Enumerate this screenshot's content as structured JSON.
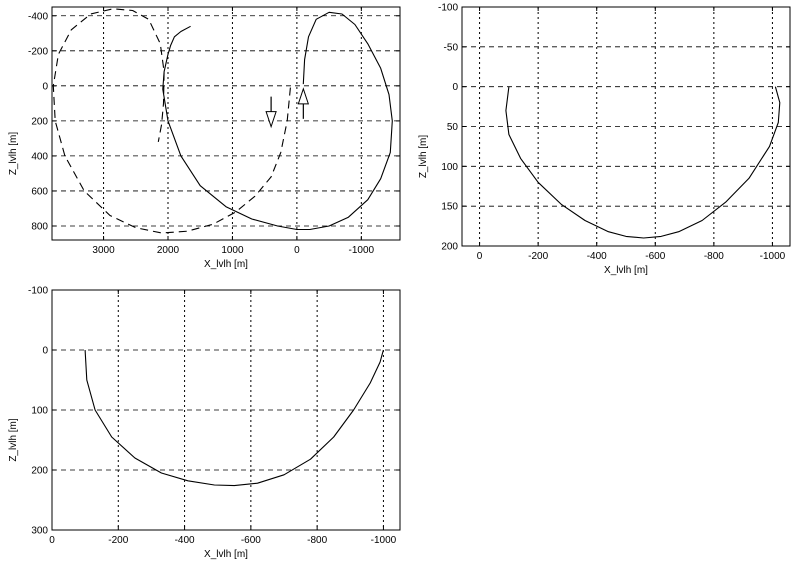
{
  "chart_data": [
    {
      "type": "line",
      "xlabel": "X_lvlh [m]",
      "ylabel": "Z_lvlh [m]",
      "xlim": [
        3800,
        -1600
      ],
      "ylim": [
        -450,
        880
      ],
      "xticks": [
        3000,
        2000,
        1000,
        0,
        -1000
      ],
      "xtick_labels": [
        "3000",
        "2000",
        "1000",
        "0",
        "-1000"
      ],
      "yticks": [
        -400,
        -200,
        0,
        200,
        400,
        600,
        800
      ],
      "ytick_labels": [
        "-400",
        "-200",
        "0",
        "200",
        "400",
        "600",
        "800"
      ],
      "grid": true,
      "series": [
        {
          "style": "solid",
          "x": [
            -100,
            -120,
            -180,
            -300,
            -500,
            -700,
            -900,
            -1100,
            -1300,
            -1430,
            -1480,
            -1450,
            -1300,
            -1100,
            -800,
            -500,
            -200,
            0,
            300,
            700,
            1100,
            1500,
            1800,
            2000,
            2080,
            2060,
            2000,
            1960,
            1900,
            1800,
            1650
          ],
          "y": [
            -10,
            -150,
            -280,
            -380,
            -420,
            -410,
            -350,
            -240,
            -100,
            50,
            200,
            380,
            530,
            650,
            750,
            800,
            820,
            820,
            800,
            760,
            690,
            570,
            400,
            200,
            20,
            -80,
            -180,
            -230,
            -280,
            -310,
            -340
          ]
        },
        {
          "style": "dashed",
          "x": [
            100,
            150,
            250,
            400,
            650,
            950,
            1300,
            1700,
            2100,
            2500,
            2900,
            3300,
            3600,
            3750,
            3780,
            3700,
            3500,
            3200,
            2850,
            2550,
            2300,
            2120,
            2060,
            2070,
            2100,
            2150
          ],
          "y": [
            10,
            200,
            380,
            520,
            630,
            720,
            790,
            830,
            840,
            810,
            740,
            600,
            400,
            200,
            0,
            -180,
            -320,
            -410,
            -440,
            -430,
            -380,
            -240,
            -80,
            100,
            220,
            320
          ]
        }
      ],
      "annotations": [
        {
          "kind": "arrow",
          "direction": "down",
          "x": 400,
          "y": 210
        },
        {
          "kind": "arrow",
          "direction": "up",
          "x": -100,
          "y": 40
        }
      ]
    },
    {
      "type": "line",
      "xlabel": "X_lvlh [m]",
      "ylabel": "Z_lvlh [m]",
      "xlim": [
        60,
        -1060
      ],
      "ylim": [
        -100,
        200
      ],
      "xticks": [
        0,
        -200,
        -400,
        -600,
        -800,
        -1000
      ],
      "xtick_labels": [
        "0",
        "-200",
        "-400",
        "-600",
        "-800",
        "-1000"
      ],
      "yticks": [
        -100,
        -50,
        0,
        50,
        100,
        150,
        200
      ],
      "ytick_labels": [
        "-100",
        "-50",
        "0",
        "50",
        "100",
        "150",
        "200"
      ],
      "grid": true,
      "series": [
        {
          "style": "solid",
          "x": [
            -100,
            -90,
            -100,
            -140,
            -200,
            -280,
            -360,
            -440,
            -500,
            -560,
            -620,
            -680,
            -760,
            -840,
            -920,
            -990,
            -1020,
            -1025,
            -1010
          ],
          "y": [
            0,
            30,
            60,
            90,
            120,
            148,
            168,
            182,
            188,
            190,
            188,
            182,
            168,
            145,
            115,
            75,
            45,
            20,
            0
          ]
        }
      ]
    },
    {
      "type": "line",
      "xlabel": "X_lvlh [m]",
      "ylabel": "Z_lvlh [m]",
      "xlim": [
        0,
        -1050
      ],
      "ylim": [
        -100,
        300
      ],
      "xticks": [
        0,
        -200,
        -400,
        -600,
        -800,
        -1000
      ],
      "xtick_labels": [
        "0",
        "-200",
        "-400",
        "-600",
        "-800",
        "-1000"
      ],
      "yticks": [
        -100,
        0,
        100,
        200,
        300
      ],
      "ytick_labels": [
        "-100",
        "0",
        "100",
        "200",
        "300"
      ],
      "grid": true,
      "series": [
        {
          "style": "solid",
          "x": [
            -100,
            -105,
            -130,
            -180,
            -250,
            -330,
            -410,
            -490,
            -550,
            -620,
            -700,
            -780,
            -850,
            -910,
            -960,
            -990,
            -1000
          ],
          "y": [
            0,
            50,
            100,
            145,
            180,
            205,
            218,
            225,
            226,
            222,
            208,
            182,
            145,
            100,
            55,
            20,
            0
          ]
        }
      ]
    }
  ]
}
